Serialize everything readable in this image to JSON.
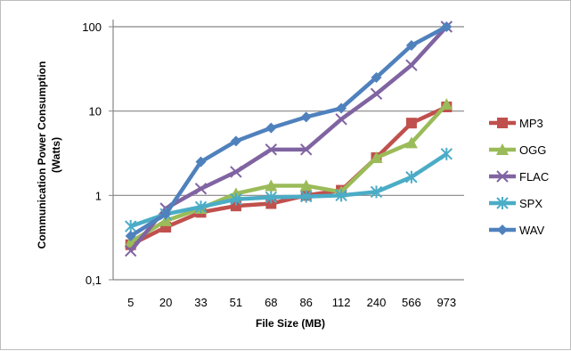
{
  "chart_data": {
    "type": "line",
    "title": "",
    "xlabel": "File Size  (MB)",
    "ylabel_line1": "Communication  Power Consumption",
    "ylabel_line2": "(Watts)",
    "y_scale": "log",
    "ylim": [
      0.1,
      100
    ],
    "y_ticks": [
      0.1,
      1,
      10,
      100
    ],
    "y_tick_labels": [
      "0,1",
      "1",
      "10",
      "100"
    ],
    "grid": "horizontal major",
    "legend_position": "right",
    "categories": [
      "5",
      "20",
      "33",
      "51",
      "68",
      "86",
      "112",
      "240",
      "566",
      "973"
    ],
    "series": [
      {
        "name": "MP3",
        "color": "#c0504d",
        "marker": "square",
        "values": [
          0.26,
          0.42,
          0.63,
          0.75,
          0.8,
          1.0,
          1.15,
          2.8,
          7.2,
          11.2
        ]
      },
      {
        "name": "OGG",
        "color": "#9bbb59",
        "marker": "triangle",
        "values": [
          0.28,
          0.5,
          0.7,
          1.05,
          1.3,
          1.3,
          1.1,
          2.8,
          4.2,
          12.0
        ]
      },
      {
        "name": "FLAC",
        "color": "#8064a2",
        "marker": "x",
        "values": [
          0.22,
          0.7,
          1.2,
          1.9,
          3.5,
          3.5,
          8.0,
          16.0,
          35.0,
          100.0
        ]
      },
      {
        "name": "SPX",
        "color": "#4bacc6",
        "marker": "star",
        "values": [
          0.43,
          0.6,
          0.73,
          0.9,
          0.95,
          0.97,
          1.0,
          1.1,
          1.65,
          3.1
        ]
      },
      {
        "name": "WAV",
        "color": "#4f81bd",
        "marker": "diamond",
        "values": [
          0.33,
          0.6,
          2.5,
          4.4,
          6.3,
          8.5,
          10.8,
          25.0,
          60.0,
          100.0
        ]
      }
    ]
  }
}
